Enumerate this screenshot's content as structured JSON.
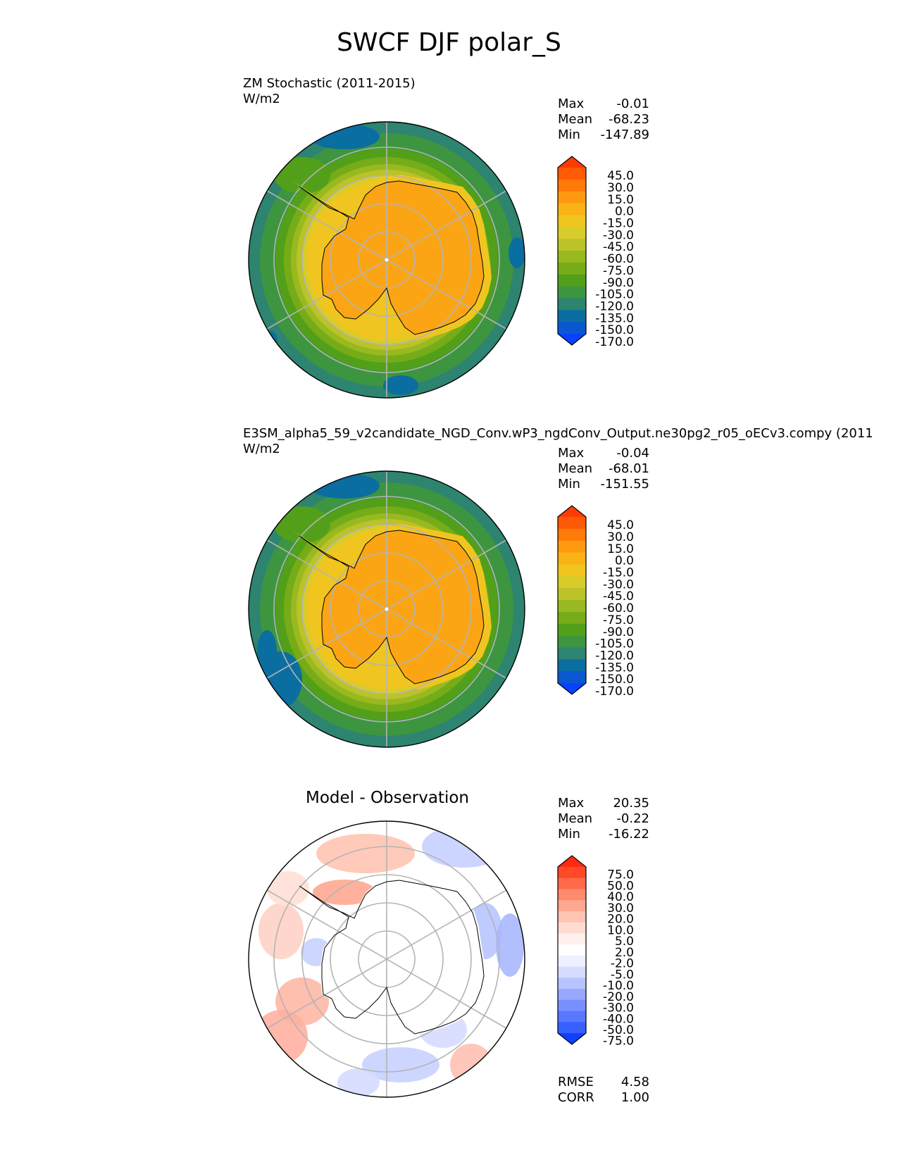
{
  "figure": {
    "title": "SWCF DJF polar_S"
  },
  "panels": [
    {
      "id": "test",
      "title": "ZM Stochastic (2011-2015)",
      "units": "W/m2",
      "stats": {
        "max_label": "Max",
        "max": "-0.01",
        "mean_label": "Mean",
        "mean": "-68.23",
        "min_label": "Min",
        "min": "-147.89"
      },
      "colorbar": {
        "labels": [
          "45.0",
          "30.0",
          "15.0",
          "0.0",
          "-15.0",
          "-30.0",
          "-45.0",
          "-60.0",
          "-75.0",
          "-90.0",
          "-105.0",
          "-120.0",
          "-135.0",
          "-150.0",
          "-170.0"
        ],
        "colors": [
          "#ff3b05",
          "#ff5a05",
          "#ff7a08",
          "#ff9a10",
          "#fbb215",
          "#f0c520",
          "#d8cc2a",
          "#bbc328",
          "#98b920",
          "#76ac18",
          "#52a01a",
          "#3d9540",
          "#2d8470",
          "#0a6ea0",
          "#0a58d0",
          "#0a40ff"
        ]
      }
    },
    {
      "id": "reference",
      "title": "E3SM_alpha5_59_v2candidate_NGD_Conv.wP3_ngdConv_Output.ne30pg2_r05_oECv3.compy (2011",
      "units": "W/m2",
      "stats": {
        "max_label": "Max",
        "max": "-0.04",
        "mean_label": "Mean",
        "mean": "-68.01",
        "min_label": "Min",
        "min": "-151.55"
      },
      "colorbar": {
        "labels": [
          "45.0",
          "30.0",
          "15.0",
          "0.0",
          "-15.0",
          "-30.0",
          "-45.0",
          "-60.0",
          "-75.0",
          "-90.0",
          "-105.0",
          "-120.0",
          "-135.0",
          "-150.0",
          "-170.0"
        ],
        "colors": [
          "#ff3b05",
          "#ff5a05",
          "#ff7a08",
          "#ff9a10",
          "#fbb215",
          "#f0c520",
          "#d8cc2a",
          "#bbc328",
          "#98b920",
          "#76ac18",
          "#52a01a",
          "#3d9540",
          "#2d8470",
          "#0a6ea0",
          "#0a58d0",
          "#0a40ff"
        ]
      }
    },
    {
      "id": "diff",
      "subtitle": "Model - Observation",
      "stats": {
        "max_label": "Max",
        "max": "20.35",
        "mean_label": "Mean",
        "mean": "-0.22",
        "min_label": "Min",
        "min": "-16.22"
      },
      "metrics": {
        "rmse_label": "RMSE",
        "rmse": "4.58",
        "corr_label": "CORR",
        "corr": "1.00"
      },
      "colorbar": {
        "labels": [
          "75.0",
          "50.0",
          "40.0",
          "30.0",
          "20.0",
          "10.0",
          "5.0",
          "2.0",
          "-2.0",
          "-5.0",
          "-10.0",
          "-20.0",
          "-30.0",
          "-40.0",
          "-50.0",
          "-75.0"
        ],
        "colors": [
          "#ff2a10",
          "#ff4a2a",
          "#ff6a4a",
          "#ff8a6e",
          "#ffa891",
          "#ffc4b2",
          "#ffdcd2",
          "#fff0ec",
          "#ffffff",
          "#eef0ff",
          "#d6dcff",
          "#b8c4ff",
          "#98a8ff",
          "#7890ff",
          "#5878ff",
          "#3860ff",
          "#1040ff"
        ]
      }
    }
  ],
  "colors": {
    "grid": "#b4b4b4",
    "coast": "#000000",
    "ocean_test": "#2d8470",
    "land": "#fba515"
  }
}
